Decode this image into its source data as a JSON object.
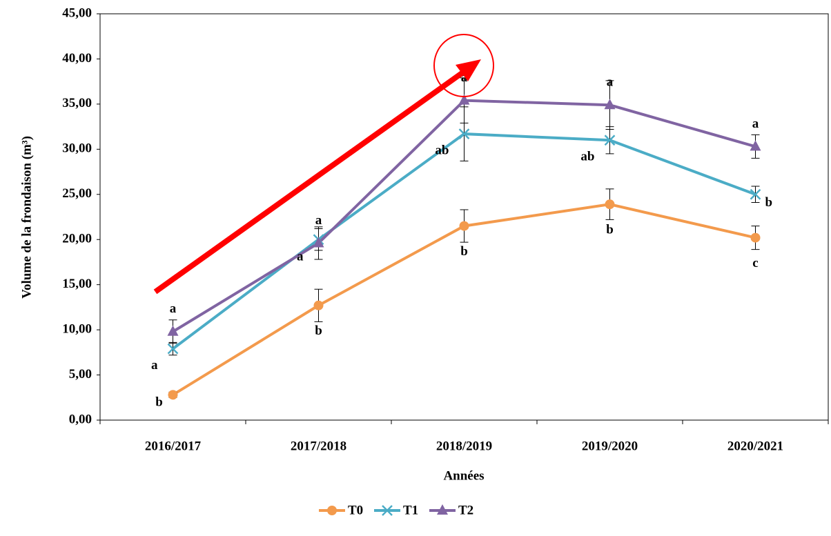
{
  "chart_data": {
    "type": "line",
    "x_label": "Années",
    "y_label": "Volume de la frondaison (m³)",
    "categories": [
      "2016/2017",
      "2017/2018",
      "2018/2019",
      "2019/2020",
      "2020/2021"
    ],
    "ylim": [
      0,
      45
    ],
    "yticks": [
      {
        "value": 0,
        "label": "0,00"
      },
      {
        "value": 5,
        "label": "5,00"
      },
      {
        "value": 10,
        "label": "10,00"
      },
      {
        "value": 15,
        "label": "15,00"
      },
      {
        "value": 20,
        "label": "20,00"
      },
      {
        "value": 25,
        "label": "25,00"
      },
      {
        "value": 30,
        "label": "30,00"
      },
      {
        "value": 35,
        "label": "35,00"
      },
      {
        "value": 40,
        "label": "40,00"
      },
      {
        "value": 45,
        "label": "45,00"
      }
    ],
    "series": [
      {
        "name": "T0",
        "color": "#f39a4c",
        "marker": "circle",
        "values": [
          2.8,
          12.7,
          21.5,
          23.9,
          20.2
        ],
        "errors": [
          0.3,
          1.8,
          1.8,
          1.7,
          1.3
        ],
        "letters": [
          "b",
          "b",
          "b",
          "b",
          "c"
        ]
      },
      {
        "name": "T1",
        "color": "#4bacc6",
        "marker": "x",
        "values": [
          7.9,
          20.0,
          31.7,
          31.0,
          25.0
        ],
        "errors": [
          0.7,
          1.2,
          3.0,
          1.5,
          0.9
        ],
        "letters": [
          "a",
          "a",
          "ab",
          "ab",
          "b"
        ]
      },
      {
        "name": "T2",
        "color": "#8064a2",
        "marker": "triangle",
        "values": [
          9.8,
          19.6,
          35.4,
          34.9,
          30.3
        ],
        "errors": [
          1.3,
          1.8,
          2.5,
          2.7,
          1.3
        ],
        "letters": [
          "a",
          "a",
          "a",
          "a",
          "a"
        ]
      }
    ]
  }
}
